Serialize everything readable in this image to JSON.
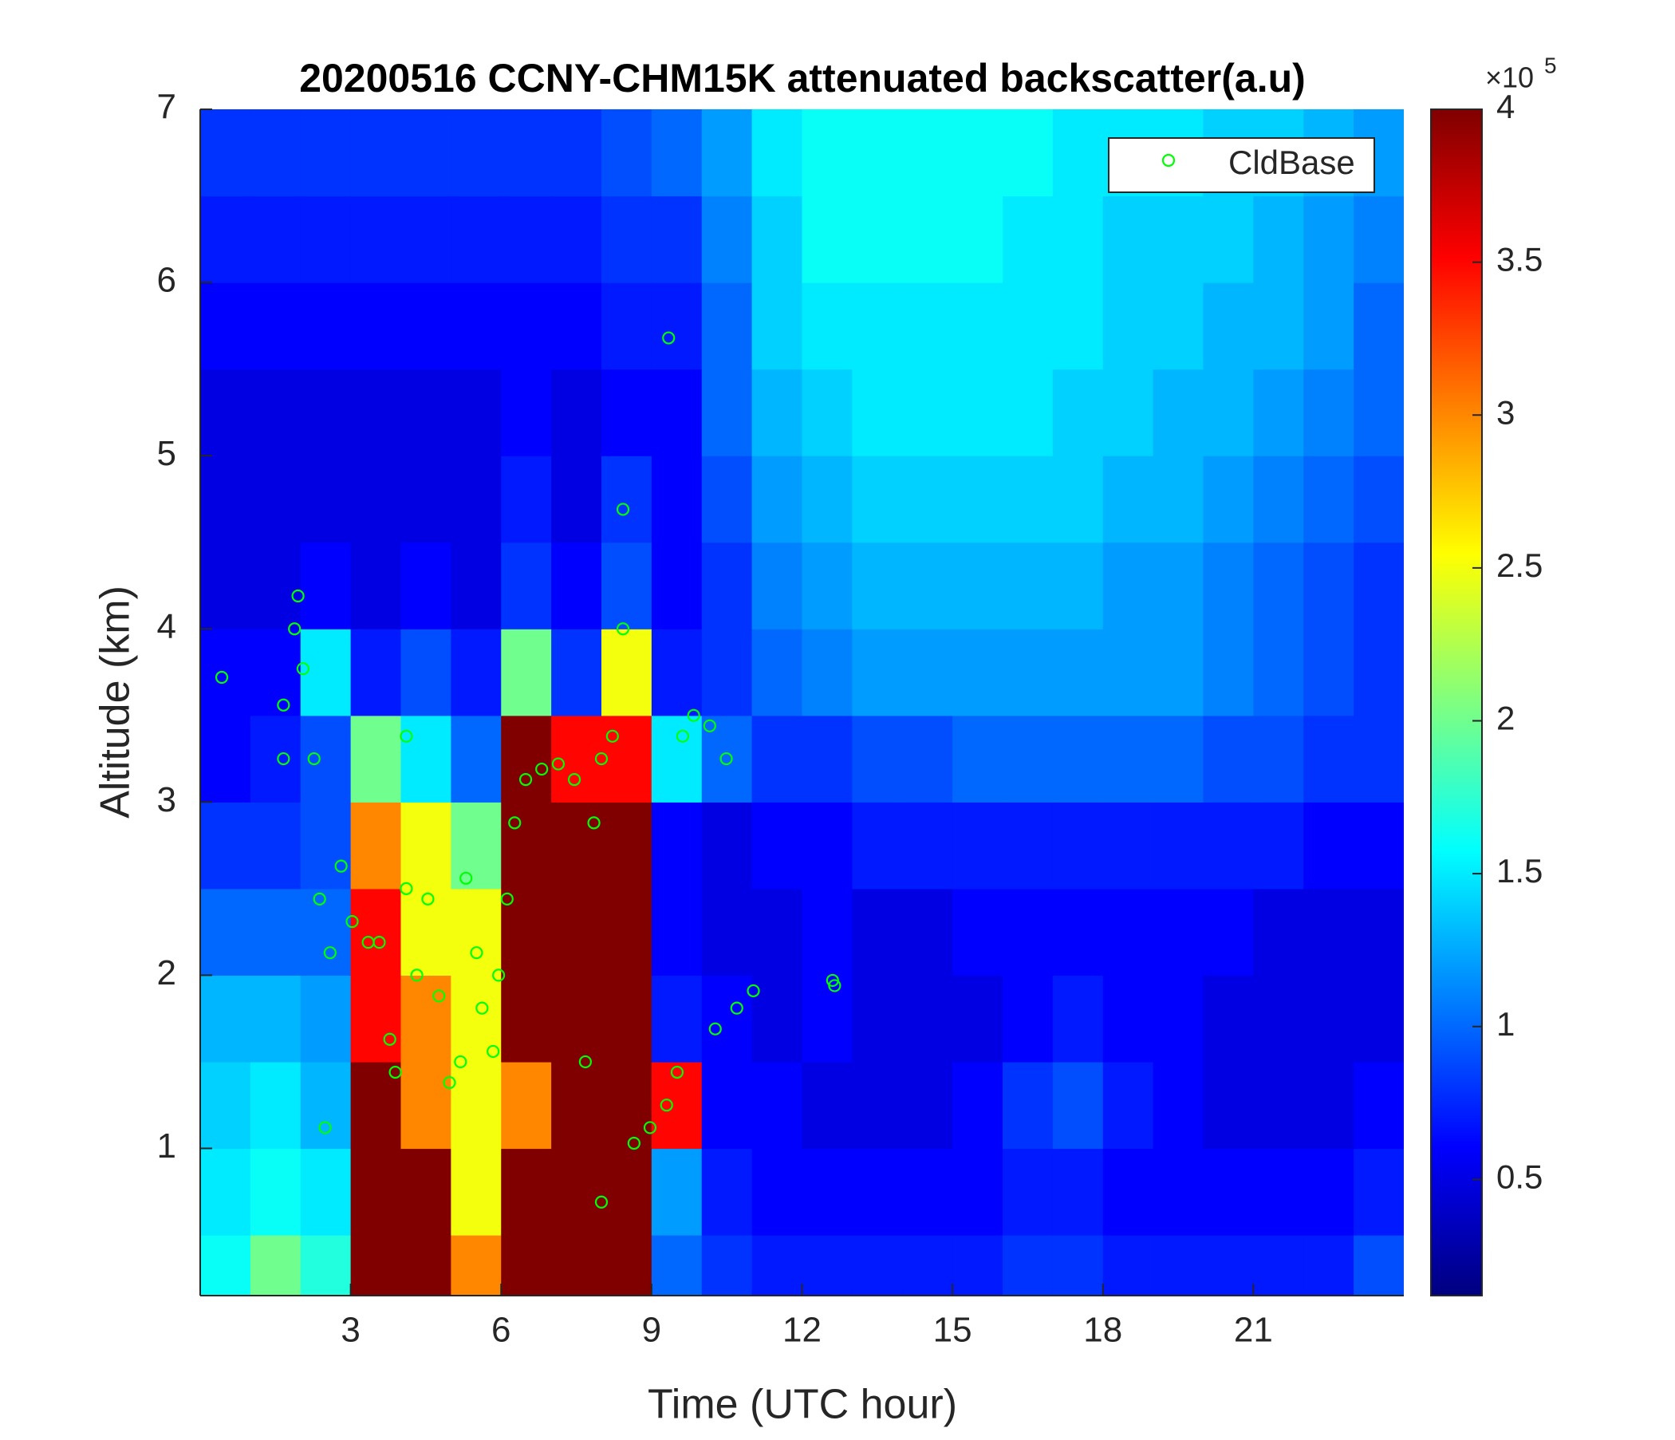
{
  "chart_data": {
    "type": "heatmap",
    "title": "20200516 CCNY-CHM15K attenuated backscatter(a.u)",
    "xlabel": "Time (UTC hour)",
    "ylabel": "Altitude (km)",
    "xlim": [
      0,
      24
    ],
    "ylim": [
      0.15,
      7
    ],
    "xticks": [
      3,
      6,
      9,
      12,
      15,
      18,
      21
    ],
    "yticks": [
      1,
      2,
      3,
      4,
      5,
      6,
      7
    ],
    "colormap": "jet",
    "clim": [
      0.12,
      4
    ],
    "cticks": [
      0.5,
      1,
      1.5,
      2,
      2.5,
      3,
      3.5,
      4
    ],
    "colorbar_scale_label": {
      "base": "×10",
      "exponent": "5"
    },
    "legend_position": "upper right",
    "x": [
      0.5,
      1.5,
      2.5,
      3.5,
      4.5,
      5.5,
      6.5,
      7.5,
      8.5,
      9.5,
      10.5,
      11.5,
      12.5,
      13.5,
      14.5,
      15.5,
      16.5,
      17.5,
      18.5,
      19.5,
      20.5,
      21.5,
      22.5,
      23.5
    ],
    "y": [
      0.25,
      0.75,
      1.25,
      1.75,
      2.25,
      2.75,
      3.25,
      3.75,
      4.25,
      4.75,
      5.25,
      5.75,
      6.25,
      6.75
    ],
    "z": [
      [
        1.6,
        2.0,
        1.7,
        4,
        4,
        3,
        4,
        4,
        4,
        1.0,
        0.8,
        0.7,
        0.7,
        0.7,
        0.7,
        0.7,
        0.8,
        0.8,
        0.7,
        0.7,
        0.7,
        0.7,
        0.7,
        0.9
      ],
      [
        1.5,
        1.6,
        1.5,
        4,
        4,
        2.5,
        4,
        4,
        4,
        1.2,
        0.7,
        0.6,
        0.6,
        0.6,
        0.6,
        0.6,
        0.7,
        0.7,
        0.6,
        0.6,
        0.6,
        0.6,
        0.6,
        0.7
      ],
      [
        1.4,
        1.5,
        1.3,
        4,
        3,
        2.5,
        3,
        4,
        4,
        3.5,
        0.6,
        0.6,
        0.5,
        0.5,
        0.5,
        0.6,
        0.8,
        0.9,
        0.7,
        0.6,
        0.5,
        0.5,
        0.5,
        0.6
      ],
      [
        1.3,
        1.3,
        1.2,
        3.5,
        3,
        2.5,
        4,
        4,
        4,
        0.7,
        0.6,
        0.5,
        0.6,
        0.5,
        0.5,
        0.5,
        0.6,
        0.7,
        0.6,
        0.6,
        0.5,
        0.5,
        0.5,
        0.5
      ],
      [
        1.0,
        1.0,
        1.0,
        3.5,
        2.5,
        2.5,
        4,
        4,
        4,
        0.6,
        0.5,
        0.5,
        0.6,
        0.5,
        0.5,
        0.6,
        0.6,
        0.6,
        0.6,
        0.6,
        0.6,
        0.5,
        0.5,
        0.5
      ],
      [
        0.8,
        0.8,
        0.9,
        3,
        2.5,
        2.0,
        4,
        4,
        4,
        0.6,
        0.5,
        0.6,
        0.6,
        0.7,
        0.7,
        0.7,
        0.7,
        0.7,
        0.7,
        0.7,
        0.7,
        0.7,
        0.6,
        0.6
      ],
      [
        0.6,
        0.7,
        0.9,
        2.0,
        1.5,
        1.0,
        4,
        3.5,
        3.5,
        1.5,
        1.0,
        0.8,
        0.8,
        0.9,
        0.9,
        1.0,
        1.0,
        1.0,
        1.0,
        1.0,
        0.9,
        0.9,
        0.8,
        0.8
      ],
      [
        0.6,
        0.6,
        1.5,
        0.7,
        0.9,
        0.7,
        2.0,
        0.8,
        2.5,
        0.7,
        0.8,
        1.0,
        1.1,
        1.2,
        1.2,
        1.2,
        1.2,
        1.2,
        1.2,
        1.2,
        1.1,
        1.0,
        0.9,
        0.8
      ],
      [
        0.5,
        0.5,
        0.6,
        0.5,
        0.6,
        0.5,
        0.8,
        0.6,
        0.9,
        0.6,
        0.8,
        1.1,
        1.2,
        1.3,
        1.3,
        1.3,
        1.3,
        1.3,
        1.2,
        1.2,
        1.1,
        1.0,
        0.9,
        0.8
      ],
      [
        0.5,
        0.5,
        0.5,
        0.5,
        0.5,
        0.5,
        0.7,
        0.5,
        0.8,
        0.6,
        0.9,
        1.2,
        1.3,
        1.4,
        1.4,
        1.4,
        1.4,
        1.4,
        1.3,
        1.3,
        1.2,
        1.1,
        1.0,
        0.9
      ],
      [
        0.5,
        0.5,
        0.5,
        0.5,
        0.5,
        0.5,
        0.6,
        0.5,
        0.6,
        0.6,
        1.0,
        1.3,
        1.4,
        1.5,
        1.5,
        1.5,
        1.5,
        1.4,
        1.4,
        1.3,
        1.3,
        1.2,
        1.1,
        1.0
      ],
      [
        0.6,
        0.6,
        0.6,
        0.6,
        0.6,
        0.6,
        0.6,
        0.6,
        0.7,
        0.7,
        1.0,
        1.4,
        1.5,
        1.5,
        1.5,
        1.5,
        1.5,
        1.5,
        1.4,
        1.4,
        1.3,
        1.3,
        1.2,
        1.0
      ],
      [
        0.7,
        0.7,
        0.7,
        0.7,
        0.7,
        0.7,
        0.7,
        0.7,
        0.8,
        0.8,
        1.1,
        1.4,
        1.6,
        1.6,
        1.6,
        1.6,
        1.5,
        1.5,
        1.4,
        1.4,
        1.4,
        1.3,
        1.2,
        1.1
      ],
      [
        0.8,
        0.8,
        0.8,
        0.8,
        0.8,
        0.8,
        0.8,
        0.8,
        0.9,
        1.0,
        1.2,
        1.5,
        1.6,
        1.6,
        1.6,
        1.6,
        1.6,
        1.5,
        1.5,
        1.5,
        1.4,
        1.4,
        1.3,
        1.2
      ]
    ],
    "series": [
      {
        "name": "CldBase",
        "type": "scatter",
        "color": "#00ff00",
        "x": [
          0.43,
          1.66,
          1.66,
          1.88,
          1.95,
          2.05,
          2.27,
          2.38,
          2.49,
          2.59,
          2.81,
          3.03,
          3.35,
          3.57,
          3.78,
          3.89,
          4.11,
          4.11,
          4.32,
          4.54,
          4.76,
          4.97,
          5.19,
          5.3,
          5.51,
          5.62,
          5.84,
          5.95,
          6.12,
          6.27,
          6.49,
          6.81,
          7.14,
          7.46,
          7.68,
          7.85,
          8.0,
          8.0,
          8.22,
          8.43,
          8.43,
          8.65,
          8.97,
          9.3,
          9.34,
          9.51,
          9.62,
          9.84,
          10.16,
          10.27,
          10.49,
          10.7,
          11.03,
          12.61,
          12.65
        ],
        "values": [
          3.72,
          3.56,
          3.25,
          4.0,
          4.19,
          3.77,
          3.25,
          2.44,
          1.12,
          2.13,
          2.63,
          2.31,
          2.19,
          2.19,
          1.63,
          1.44,
          3.38,
          2.5,
          2.0,
          2.44,
          1.88,
          1.38,
          1.5,
          2.56,
          2.13,
          1.81,
          1.56,
          2.0,
          2.44,
          2.88,
          3.13,
          3.19,
          3.22,
          3.13,
          1.5,
          2.88,
          3.25,
          0.69,
          3.38,
          4.0,
          4.69,
          1.03,
          1.12,
          1.25,
          5.68,
          1.44,
          3.38,
          3.5,
          3.44,
          1.69,
          3.25,
          1.81,
          1.91,
          1.97,
          1.94
        ]
      }
    ]
  }
}
